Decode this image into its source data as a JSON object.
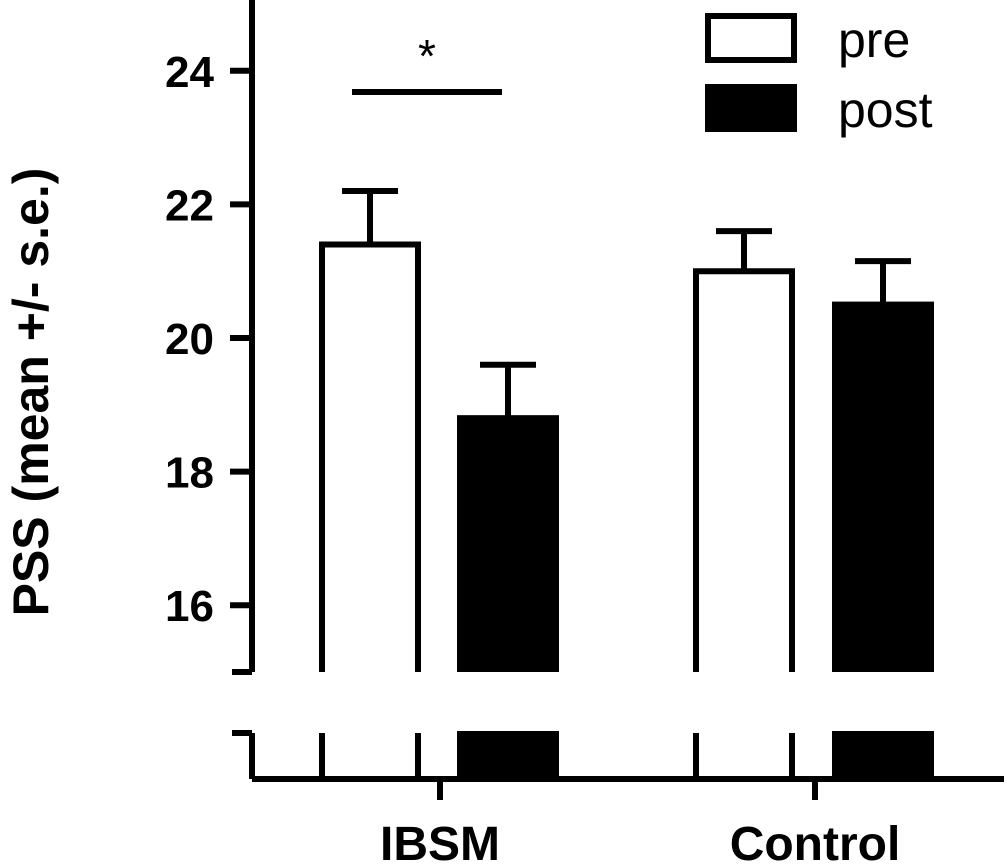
{
  "chart_data": {
    "type": "bar",
    "categories": [
      "IBSM",
      "Control"
    ],
    "series": [
      {
        "name": "pre",
        "values": [
          21.4,
          21.0
        ],
        "errors": [
          0.8,
          0.6
        ],
        "color": "#ffffff"
      },
      {
        "name": "post",
        "values": [
          18.8,
          20.5
        ],
        "errors": [
          0.8,
          0.65
        ],
        "color": "#000000"
      }
    ],
    "ylabel": "PSS (mean +/- s.e.)",
    "xlabel": "",
    "ylim": [
      15,
      25
    ],
    "yticks": [
      "16",
      "18",
      "20",
      "22",
      "24"
    ],
    "axis_break": true,
    "legend_position": "top-right",
    "annotation": {
      "text": "*",
      "category": "IBSM",
      "between": [
        "pre",
        "post"
      ]
    }
  }
}
